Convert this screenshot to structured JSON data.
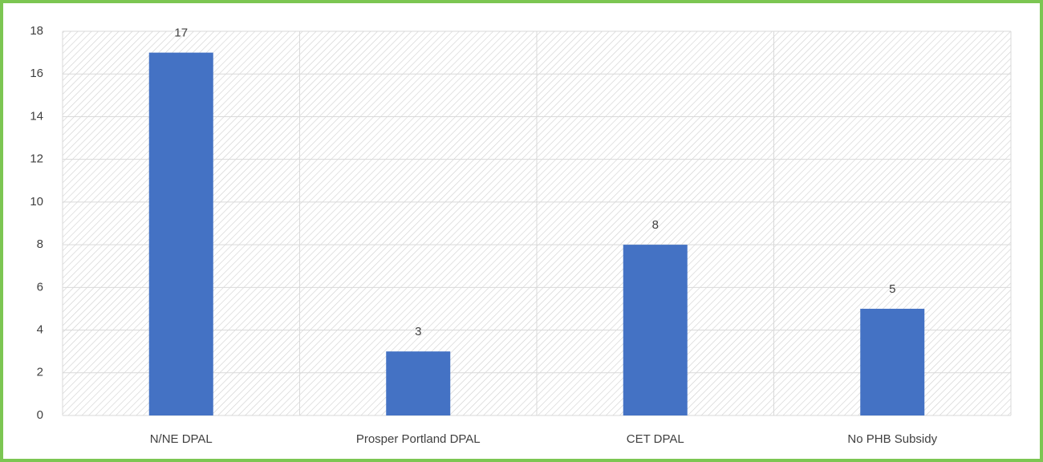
{
  "chart_data": {
    "type": "bar",
    "categories": [
      "N/NE DPAL",
      "Prosper Portland DPAL",
      "CET DPAL",
      "No PHB Subsidy"
    ],
    "values": [
      17,
      3,
      8,
      5
    ],
    "color": "#4472c4",
    "ylim": [
      0,
      18
    ],
    "yticks": [
      0,
      2,
      4,
      6,
      8,
      10,
      12,
      14,
      16,
      18
    ],
    "grid": true
  }
}
